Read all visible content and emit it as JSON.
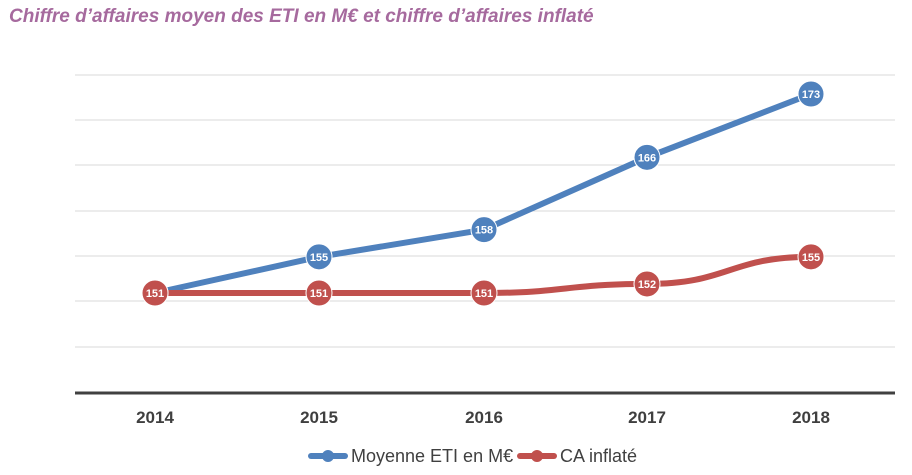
{
  "chart_data": {
    "type": "line",
    "title": "Chiffre d’affaires moyen des ETI en M€ et chiffre d’affaires inflaté",
    "categories": [
      "2014",
      "2015",
      "2016",
      "2017",
      "2018"
    ],
    "series": [
      {
        "name": "Moyenne ETI en M€",
        "color": "#4f81bd",
        "values": [
          151,
          155,
          158,
          166,
          173
        ],
        "labels": [
          "151",
          "155",
          "158",
          "166",
          "173"
        ]
      },
      {
        "name": "CA inflaté",
        "color": "#c0504d",
        "values": [
          151,
          151,
          151,
          152,
          155
        ],
        "labels": [
          "151",
          "151",
          "151",
          "152",
          "155"
        ]
      }
    ],
    "ylim": [
      143,
      176
    ],
    "grid": true,
    "legend_position": "bottom"
  }
}
